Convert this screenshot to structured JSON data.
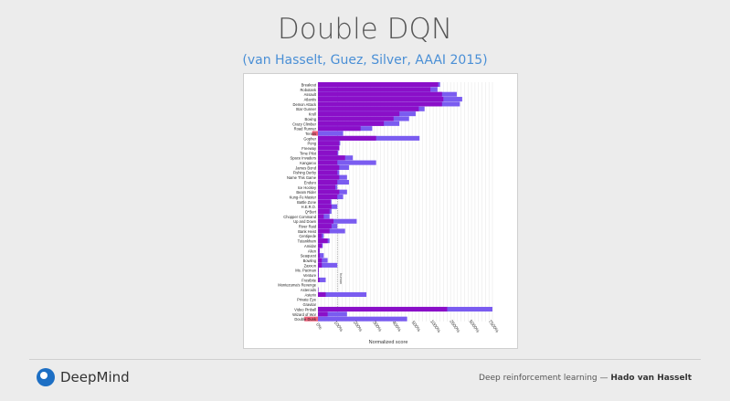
{
  "slide": {
    "title": "Double DQN",
    "subtitle": "(van Hasselt, Guez, Silver, AAAI 2015)",
    "footer_text": "Deep reinforcement learning — ",
    "footer_author": "Hado van Hasselt",
    "logo_text": "DeepMind"
  },
  "colors": {
    "double_dqn": "#7a5cf0",
    "dqn_overlap": "#8a0fc8",
    "dqn_worse": "#f0607a",
    "grid": "#dddddd"
  },
  "chart_data": {
    "type": "bar",
    "orientation": "horizontal",
    "xlabel": "Normalized score",
    "x_ticks": [
      "0%",
      "100%",
      "200%",
      "300%",
      "400%",
      "500%",
      "1000%",
      "2500%",
      "5000%",
      "7500%"
    ],
    "x_tick_values": [
      0,
      100,
      200,
      300,
      400,
      500,
      1000,
      2500,
      5000,
      7500
    ],
    "reference_line": {
      "value": 100,
      "label": "human"
    },
    "grid": true,
    "legend": "none",
    "categories": [
      "Breakout",
      "Robotank",
      "Assault",
      "Atlantis",
      "Demon Attack",
      "Star Gunner",
      "Krull",
      "Boxing",
      "Crazy Climber",
      "Road Runner",
      "Tennis",
      "Gopher",
      "Pong",
      "Freeway",
      "Time Pilot",
      "Space Invaders",
      "Kangaroo",
      "James Bond",
      "Fishing Derby",
      "Name This Game",
      "Enduro",
      "Ice Hockey",
      "Beam Rider",
      "Kung-Fu Master",
      "Battle Zone",
      "H.E.R.O.",
      "Q*Bert",
      "Chopper Command",
      "Up and Down",
      "River Raid",
      "Bank Heist",
      "Centipede",
      "Tutankham",
      "Amidar",
      "Alien",
      "Seaquest",
      "Bowling",
      "Zaxxon",
      "Ms. Pacman",
      "Venture",
      "Frostbite",
      "Montezuma's Revenge",
      "Asteroids",
      "Asterix",
      "Private Eye",
      "Gravitar",
      "Video Pinball",
      "Wizard of Wor",
      "Double Dunk"
    ],
    "series": [
      {
        "name": "Double DQN",
        "values": [
          1450,
          1250,
          2900,
          3600,
          3300,
          750,
          520,
          470,
          420,
          280,
          130,
          620,
          115,
          110,
          105,
          180,
          300,
          160,
          110,
          150,
          160,
          100,
          150,
          130,
          70,
          100,
          70,
          60,
          200,
          100,
          140,
          30,
          60,
          25,
          10,
          30,
          50,
          100,
          5,
          5,
          40,
          0,
          3,
          250,
          0,
          0,
          8500,
          150,
          460
        ]
      },
      {
        "name": "DQN",
        "values": [
          1300,
          900,
          1600,
          1700,
          1600,
          600,
          420,
          390,
          340,
          220,
          -30,
          300,
          110,
          110,
          100,
          140,
          100,
          110,
          100,
          110,
          100,
          90,
          110,
          100,
          65,
          70,
          60,
          30,
          80,
          70,
          60,
          20,
          50,
          20,
          8,
          10,
          20,
          20,
          4,
          3,
          8,
          0,
          2,
          40,
          0,
          0,
          2000,
          50,
          -70
        ]
      }
    ]
  }
}
